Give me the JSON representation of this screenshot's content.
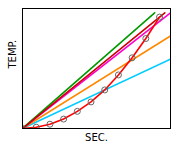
{
  "chart_data": {
    "type": "line",
    "xlabel": "SEC.",
    "ylabel": "TEMP.",
    "xlim": [
      0,
      10.8
    ],
    "ylim": [
      0,
      28
    ],
    "xticks": [],
    "yticks": [],
    "tick_labels": false,
    "grid": false,
    "series": [
      {
        "type": "line",
        "color": "#00ccff",
        "x": [
          0,
          10.8
        ],
        "values": [
          0,
          16.2
        ]
      },
      {
        "type": "line",
        "color": "#ff8800",
        "x": [
          0,
          10.8
        ],
        "values": [
          0,
          21.6
        ]
      },
      {
        "type": "line",
        "color": "#ff00cc",
        "x": [
          0,
          10.8
        ],
        "values": [
          0,
          27
        ]
      },
      {
        "type": "line",
        "color": "#009900",
        "x": [
          0,
          9.642857142857142
        ],
        "values": [
          0,
          27
        ]
      },
      {
        "type": "line",
        "color": "#cc0000",
        "x": [
          0,
          10.384615384615385
        ],
        "values": [
          0,
          27
        ]
      },
      {
        "type": "line",
        "color": "#ff0000",
        "x": [
          0,
          1,
          2,
          3,
          4,
          5,
          6,
          7,
          8,
          9,
          10
        ],
        "values": [
          0,
          0.3,
          1.0,
          2.2,
          4.0,
          6.2,
          9.0,
          12.5,
          16.5,
          21.0,
          26.0
        ]
      },
      {
        "type": "scatter",
        "color": "#666666",
        "marker": "circle",
        "x": [
          0,
          1,
          2,
          3,
          4,
          5,
          6,
          7,
          8,
          9,
          10
        ],
        "values": [
          0,
          0.3,
          1.0,
          2.2,
          4.0,
          6.2,
          9.0,
          12.5,
          16.5,
          21.0,
          26.0
        ]
      }
    ]
  }
}
